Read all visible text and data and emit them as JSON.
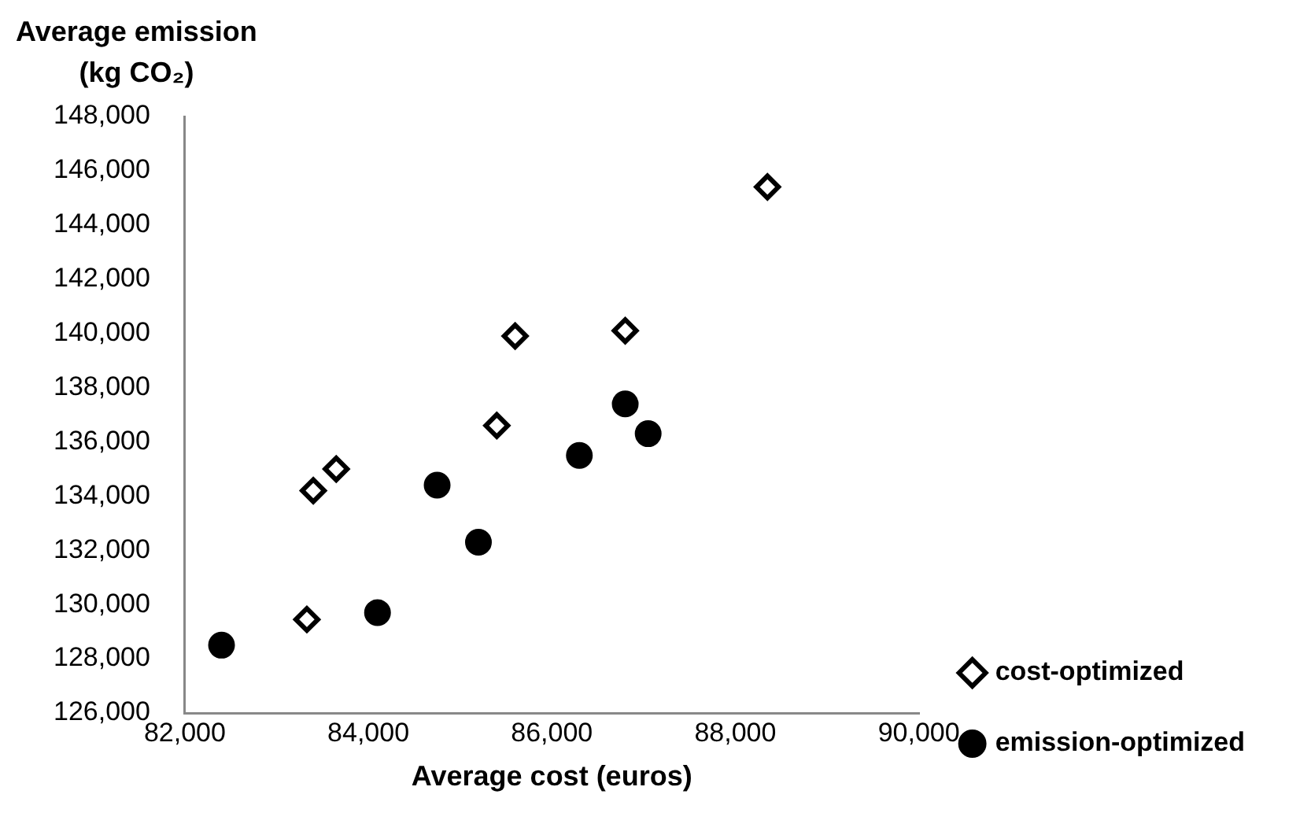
{
  "chart_data": {
    "type": "scatter",
    "xlabel": "Average cost (euros)",
    "ylabel": "Average emission\n(kg CO₂)",
    "xlim": [
      82000,
      90000
    ],
    "xticks": [
      {
        "value": 82000,
        "label": "82,000"
      },
      {
        "value": 84000,
        "label": "84,000"
      },
      {
        "value": 86000,
        "label": "86,000"
      },
      {
        "value": 88000,
        "label": "88,000"
      },
      {
        "value": 90000,
        "label": "90,000"
      }
    ],
    "ylim": [
      126000,
      148000
    ],
    "yticks": [
      {
        "value": 126000,
        "label": "126,000"
      },
      {
        "value": 128000,
        "label": "128,000"
      },
      {
        "value": 130000,
        "label": "130,000"
      },
      {
        "value": 132000,
        "label": "132,000"
      },
      {
        "value": 134000,
        "label": "134,000"
      },
      {
        "value": 136000,
        "label": "136,000"
      },
      {
        "value": 138000,
        "label": "138,000"
      },
      {
        "value": 140000,
        "label": "140,000"
      },
      {
        "value": 142000,
        "label": "142,000"
      },
      {
        "value": 144000,
        "label": "144,000"
      },
      {
        "value": 146000,
        "label": "146,000"
      },
      {
        "value": 148000,
        "label": "148,000"
      }
    ],
    "grid": false,
    "legend": "bottom right",
    "series": [
      {
        "name": "cost-optimized",
        "color": "#000000",
        "marker": "diamond",
        "x": [
          88350,
          86800,
          85600,
          85400,
          83650,
          83400,
          83330
        ],
        "values": [
          145400,
          140100,
          139900,
          136600,
          135000,
          134200,
          129450
        ]
      },
      {
        "name": "emission-optimized",
        "color": "#000000",
        "marker": "circle",
        "x": [
          82400,
          84100,
          84750,
          85200,
          86300,
          86800,
          87050
        ],
        "values": [
          128500,
          129700,
          134400,
          132300,
          135500,
          137400,
          136300
        ]
      }
    ]
  }
}
